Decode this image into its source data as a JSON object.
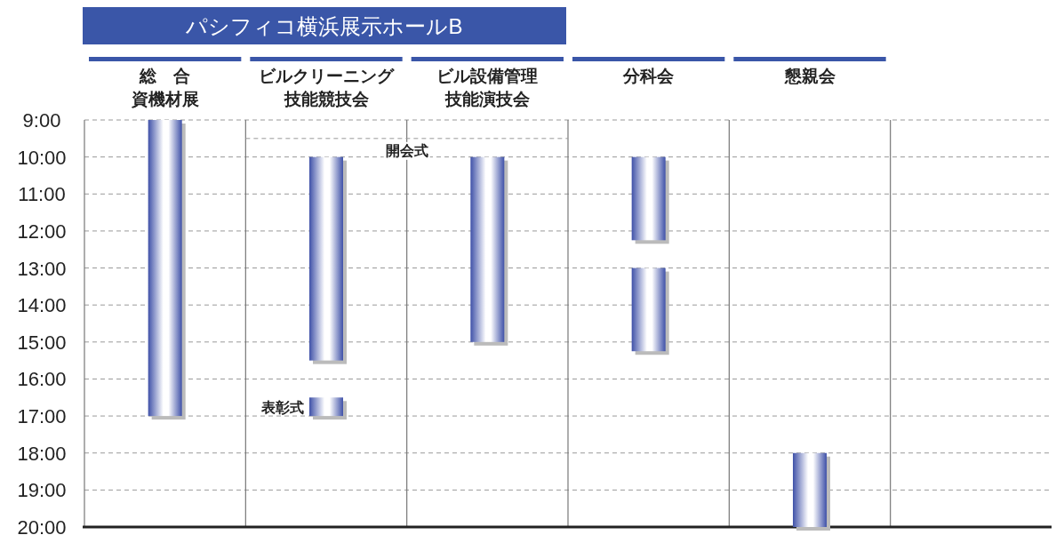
{
  "chart_data": {
    "type": "bar",
    "categories": [
      "総　合資機材展",
      "ビルクリーニング技能競技会",
      "ビル設備管理技能演技会",
      "分科会",
      "懇親会",
      null
    ],
    "series": [
      {
        "color": "#3f51a8",
        "base": [
          9,
          10,
          10,
          10,
          18,
          null
        ],
        "values": [
          8,
          5.5,
          5,
          2.25,
          2,
          null
        ]
      },
      {
        "color": "#3f51a8",
        "base": [
          null,
          16.5,
          null,
          13,
          null,
          null
        ],
        "values": [
          null,
          0.5,
          null,
          2.25,
          null,
          null
        ]
      }
    ],
    "ylim": [
      20,
      9
    ],
    "yticks": [
      {
        "value": 9,
        "label": "9:00"
      },
      {
        "value": 10,
        "label": "10:00"
      },
      {
        "value": 11,
        "label": "11:00"
      },
      {
        "value": 12,
        "label": "12:00"
      },
      {
        "value": 13,
        "label": "13:00"
      },
      {
        "value": 14,
        "label": "14:00"
      },
      {
        "value": 15,
        "label": "15:00"
      },
      {
        "value": 16,
        "label": "16:00"
      },
      {
        "value": 17,
        "label": "17:00"
      },
      {
        "value": 18,
        "label": "18:00"
      },
      {
        "value": 19,
        "label": "19:00"
      },
      {
        "value": 20,
        "label": "20:00"
      }
    ],
    "grid": true,
    "annotations": [
      "パシフィコ横浜展示ホールB",
      "表彰式"
    ],
    "ref_lines": [
      {
        "axis": "y",
        "value": 9.5,
        "label": "開会式",
        "line_style": "dashed",
        "color": "#999999"
      }
    ]
  }
}
